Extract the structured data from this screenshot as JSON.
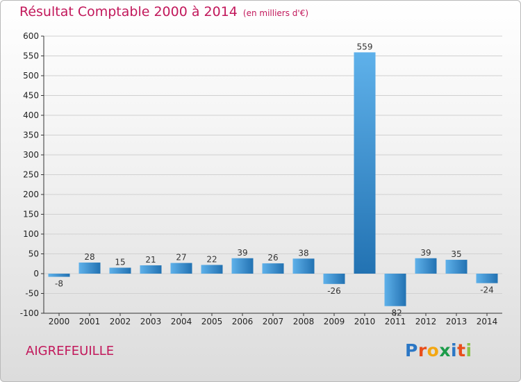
{
  "title": "Résultat Comptable 2000 à 2014",
  "unit_note": "(en milliers d'€)",
  "location": "AIGREFEUILLE",
  "logo": {
    "text": "Proxiti",
    "letters": [
      {
        "ch": "P",
        "color": "#2b77c5"
      },
      {
        "ch": "r",
        "color": "#e94e1b"
      },
      {
        "ch": "o",
        "color": "#f3a712"
      },
      {
        "ch": "x",
        "color": "#1c9c4a"
      },
      {
        "ch": "i",
        "color": "#2b77c5"
      },
      {
        "ch": "t",
        "color": "#e94e1b"
      },
      {
        "ch": "i",
        "color": "#8bc34a"
      }
    ]
  },
  "colors": {
    "title": "#c2185b",
    "bar_light": "#5fb1ea",
    "bar_dark": "#2272b2",
    "axis": "#333333",
    "grid": "#d0d0d0"
  },
  "chart_data": {
    "type": "bar",
    "title": "Résultat Comptable 2000 à 2014",
    "ylabel": "(en milliers d'€)",
    "categories": [
      "2000",
      "2001",
      "2002",
      "2003",
      "2004",
      "2005",
      "2006",
      "2007",
      "2008",
      "2009",
      "2010",
      "2011",
      "2012",
      "2013",
      "2014"
    ],
    "values": [
      -8,
      28,
      15,
      21,
      27,
      22,
      39,
      26,
      38,
      -26,
      559,
      -82,
      39,
      35,
      -24
    ],
    "ylim": [
      -100,
      600
    ],
    "yticks": [
      -100,
      -50,
      0,
      50,
      100,
      150,
      200,
      250,
      300,
      350,
      400,
      450,
      500,
      550,
      600
    ],
    "grid": true
  }
}
